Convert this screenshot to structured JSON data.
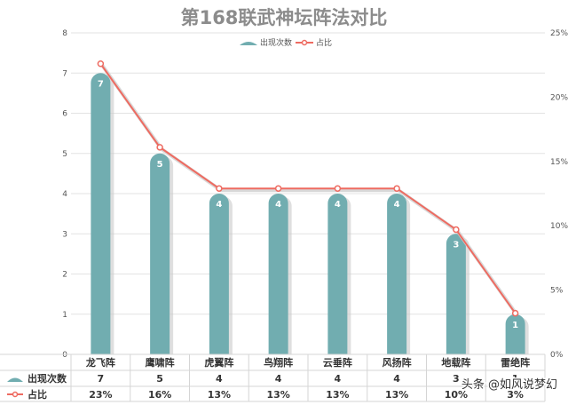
{
  "chart_data": {
    "type": "bar",
    "title": "第168联武神坛阵法对比",
    "categories": [
      "龙飞阵",
      "鹰啸阵",
      "虎翼阵",
      "鸟翔阵",
      "云垂阵",
      "风扬阵",
      "地载阵",
      "雷绝阵"
    ],
    "series": [
      {
        "name": "出现次数",
        "type": "bar",
        "axis": "left",
        "color": "#71adb0",
        "values": [
          7,
          5,
          4,
          4,
          4,
          4,
          3,
          1
        ],
        "labels": [
          "7",
          "5",
          "4",
          "4",
          "4",
          "4",
          "3",
          "1"
        ],
        "table_labels": [
          "7",
          "5",
          "4",
          "4",
          "4",
          "4",
          "3",
          "1"
        ]
      },
      {
        "name": "占比",
        "type": "line",
        "axis": "right",
        "color": "#ee6b61",
        "values": [
          22.6,
          16.1,
          12.9,
          12.9,
          12.9,
          12.9,
          9.7,
          3.2
        ],
        "table_labels": [
          "23%",
          "16%",
          "13%",
          "13%",
          "13%",
          "13%",
          "10%",
          "3%"
        ]
      }
    ],
    "y_left": {
      "min": 0,
      "max": 8,
      "ticks": [
        "0",
        "1",
        "2",
        "3",
        "4",
        "5",
        "6",
        "7",
        "8"
      ]
    },
    "y_right": {
      "min": 0,
      "max": 25,
      "ticks": [
        "0%",
        "5%",
        "10%",
        "15%",
        "20%",
        "25%"
      ]
    },
    "grid": true,
    "legend": "top-center",
    "data_table": true
  },
  "watermark": {
    "text": "头条 @如风说梦幻"
  }
}
